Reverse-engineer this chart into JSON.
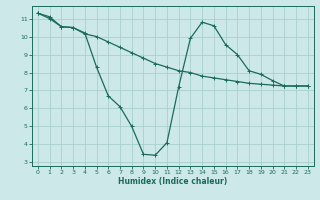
{
  "title": "",
  "xlabel": "Humidex (Indice chaleur)",
  "ylabel": "",
  "bg_color": "#cce8e8",
  "grid_color": "#aacfcf",
  "line_color": "#1a6b5a",
  "xlim": [
    -0.5,
    23.5
  ],
  "ylim": [
    2.8,
    11.7
  ],
  "yticks": [
    3,
    4,
    5,
    6,
    7,
    8,
    9,
    10,
    11
  ],
  "xticks": [
    0,
    1,
    2,
    3,
    4,
    5,
    6,
    7,
    8,
    9,
    10,
    11,
    12,
    13,
    14,
    15,
    16,
    17,
    18,
    19,
    20,
    21,
    22,
    23
  ],
  "line1_x": [
    0,
    1,
    2,
    3,
    4,
    5,
    6,
    7,
    8,
    9,
    10,
    11,
    12,
    13,
    14,
    15,
    16,
    17,
    18,
    19,
    20,
    21,
    22,
    23
  ],
  "line1_y": [
    11.3,
    11.1,
    10.55,
    10.5,
    10.2,
    8.3,
    6.7,
    6.1,
    5.0,
    3.45,
    3.4,
    4.1,
    7.2,
    9.9,
    10.8,
    10.6,
    9.55,
    9.0,
    8.1,
    7.9,
    7.55,
    7.25,
    7.25,
    7.25
  ],
  "line2_x": [
    0,
    1,
    2,
    3,
    4,
    5,
    6,
    7,
    8,
    9,
    10,
    11,
    12,
    13,
    14,
    15,
    16,
    17,
    18,
    19,
    20,
    21,
    22,
    23
  ],
  "line2_y": [
    11.3,
    11.0,
    10.55,
    10.5,
    10.15,
    10.0,
    9.7,
    9.4,
    9.1,
    8.8,
    8.5,
    8.3,
    8.1,
    8.0,
    7.8,
    7.7,
    7.6,
    7.5,
    7.4,
    7.35,
    7.3,
    7.25,
    7.25,
    7.25
  ],
  "tick_fontsize": 4.5,
  "xlabel_fontsize": 5.5
}
